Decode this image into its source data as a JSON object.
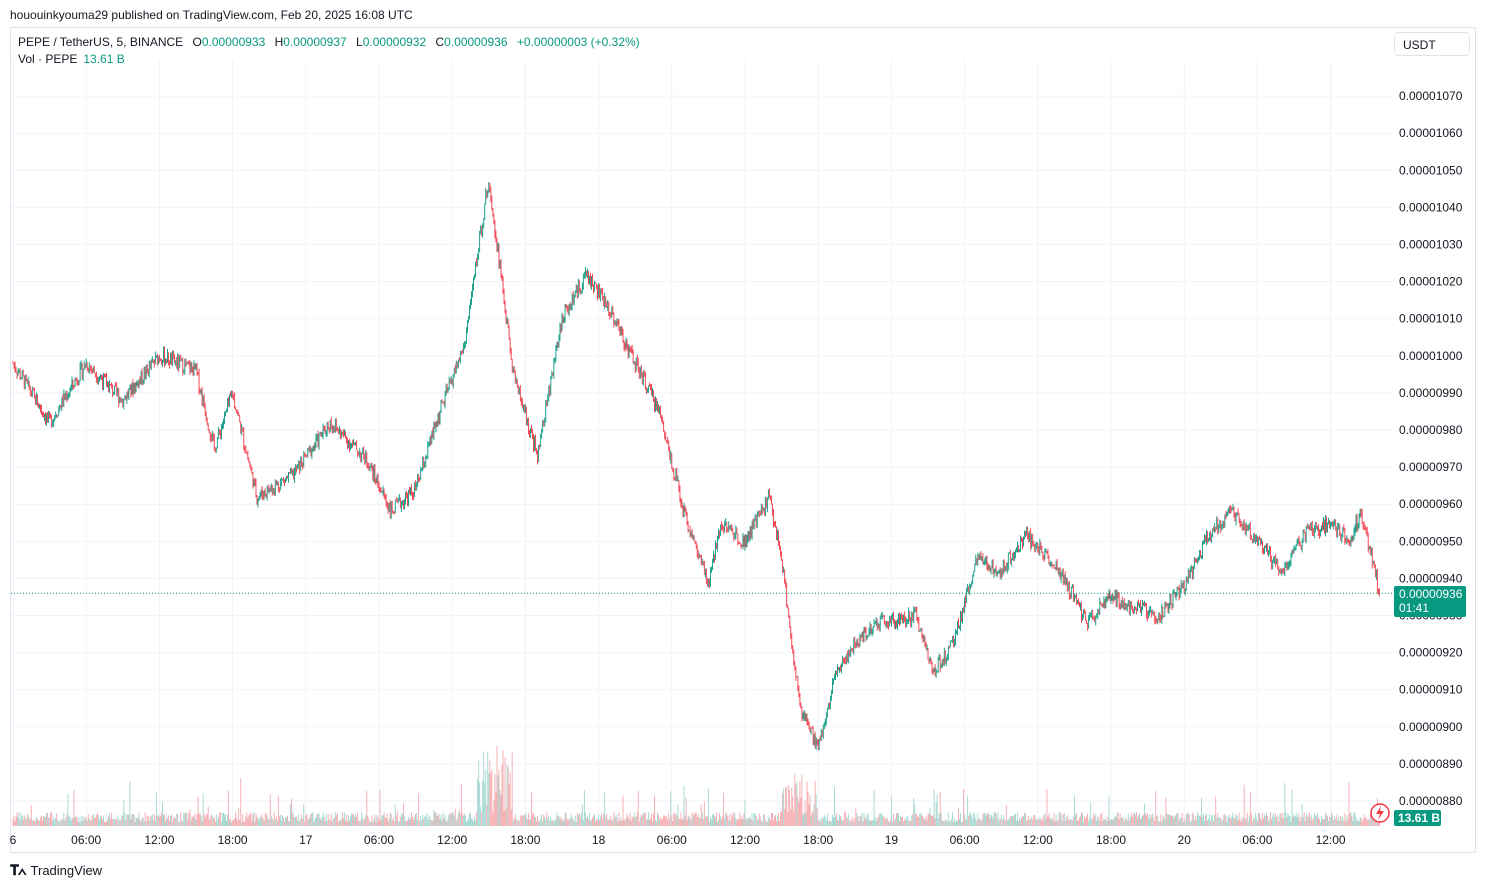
{
  "header": {
    "published_text": "hououinkyouma29 published on TradingView.com, Feb 20, 2025 16:08 UTC"
  },
  "legend": {
    "symbol": "PEPE / TetherUS, 5, BINANCE",
    "o_label": "O",
    "o_value": "0.00000933",
    "h_label": "H",
    "h_value": "0.00000937",
    "l_label": "L",
    "l_value": "0.00000932",
    "c_label": "C",
    "c_value": "0.00000936",
    "change": "+0.00000003 (+0.32%)",
    "vol_label": "Vol · PEPE",
    "vol_value": "13.61 B"
  },
  "currency_button": "USDT",
  "price_badge": {
    "price": "0.00000936",
    "countdown": "01:41"
  },
  "volume_badge": "13.61 B",
  "footer": {
    "brand": "TradingView",
    "logo": "tv-logo-icon"
  },
  "colors": {
    "up": "#089981",
    "down": "#f23645",
    "vol_up": "#9fd6cf",
    "vol_down": "#f5a9ad",
    "grid": "#f0f3fa"
  },
  "chart_data": {
    "type": "candlestick",
    "y_tick_labels": [
      "0.00000880",
      "0.00000890",
      "0.00000900",
      "0.00000910",
      "0.00000920",
      "0.00000930",
      "0.00000940",
      "0.00000950",
      "0.00000960",
      "0.00000970",
      "0.00000980",
      "0.00000990",
      "0.00001000",
      "0.00001010",
      "0.00001020",
      "0.00001030",
      "0.00001040",
      "0.00001050",
      "0.00001060",
      "0.00001070"
    ],
    "ylim": [
      8.8e-06,
      1.07e-05
    ],
    "x_tick_labels": [
      "6",
      "06:00",
      "12:00",
      "18:00",
      "17",
      "06:00",
      "12:00",
      "18:00",
      "18",
      "06:00",
      "12:00",
      "18:00",
      "19",
      "06:00",
      "12:00",
      "18:00",
      "20",
      "06:00",
      "12:00"
    ],
    "last_price": 9.36e-06,
    "price_keypoints": [
      [
        "Feb 16 00:00",
        9.98e-06
      ],
      [
        "Feb 16 03:00",
        9.82e-06
      ],
      [
        "Feb 16 06:00",
        9.98e-06
      ],
      [
        "Feb 16 09:00",
        9.88e-06
      ],
      [
        "Feb 16 12:00",
        1e-05
      ],
      [
        "Feb 16 15:00",
        9.96e-06
      ],
      [
        "Feb 16 16:30",
        9.75e-06
      ],
      [
        "Feb 16 18:00",
        9.9e-06
      ],
      [
        "Feb 16 20:00",
        9.62e-06
      ],
      [
        "Feb 16 23:00",
        9.68e-06
      ],
      [
        "Feb 17 02:00",
        9.82e-06
      ],
      [
        "Feb 17 05:00",
        9.72e-06
      ],
      [
        "Feb 17 07:00",
        9.58e-06
      ],
      [
        "Feb 17 09:00",
        9.64e-06
      ],
      [
        "Feb 17 11:00",
        9.85e-06
      ],
      [
        "Feb 17 13:00",
        1.003e-05
      ],
      [
        "Feb 17 15:00",
        1.048e-05
      ],
      [
        "Feb 17 17:00",
        9.95e-06
      ],
      [
        "Feb 17 19:00",
        9.73e-06
      ],
      [
        "Feb 17 21:00",
        1.01e-05
      ],
      [
        "Feb 17 23:00",
        1.022e-05
      ],
      [
        "Feb 18 01:00",
        1.012e-05
      ],
      [
        "Feb 18 03:00",
        9.98e-06
      ],
      [
        "Feb 18 05:00",
        9.85e-06
      ],
      [
        "Feb 18 07:00",
        9.58e-06
      ],
      [
        "Feb 18 09:00",
        9.38e-06
      ],
      [
        "Feb 18 10:00",
        9.55e-06
      ],
      [
        "Feb 18 12:00",
        9.5e-06
      ],
      [
        "Feb 18 14:00",
        9.62e-06
      ],
      [
        "Feb 18 15:00",
        9.45e-06
      ],
      [
        "Feb 18 16:30",
        9.05e-06
      ],
      [
        "Feb 18 18:00",
        8.95e-06
      ],
      [
        "Feb 18 19:30",
        9.15e-06
      ],
      [
        "Feb 18 21:00",
        9.22e-06
      ],
      [
        "Feb 18 23:00",
        9.28e-06
      ],
      [
        "Feb 19 02:00",
        9.3e-06
      ],
      [
        "Feb 19 03:30",
        9.15e-06
      ],
      [
        "Feb 19 05:00",
        9.22e-06
      ],
      [
        "Feb 19 07:00",
        9.45e-06
      ],
      [
        "Feb 19 09:00",
        9.42e-06
      ],
      [
        "Feb 19 11:00",
        9.52e-06
      ],
      [
        "Feb 19 13:00",
        9.45e-06
      ],
      [
        "Feb 19 15:00",
        9.35e-06
      ],
      [
        "Feb 19 16:00",
        9.28e-06
      ],
      [
        "Feb 19 18:00",
        9.35e-06
      ],
      [
        "Feb 19 20:00",
        9.32e-06
      ],
      [
        "Feb 19 22:00",
        9.3e-06
      ],
      [
        "Feb 20 00:00",
        9.38e-06
      ],
      [
        "Feb 20 02:00",
        9.52e-06
      ],
      [
        "Feb 20 04:00",
        9.58e-06
      ],
      [
        "Feb 20 06:00",
        9.5e-06
      ],
      [
        "Feb 20 08:00",
        9.42e-06
      ],
      [
        "Feb 20 10:00",
        9.52e-06
      ],
      [
        "Feb 20 12:00",
        9.55e-06
      ],
      [
        "Feb 20 13:30",
        9.5e-06
      ],
      [
        "Feb 20 14:30",
        9.58e-06
      ],
      [
        "Feb 20 16:00",
        9.36e-06
      ]
    ],
    "volume_last": "13.61 B",
    "grid": true
  }
}
